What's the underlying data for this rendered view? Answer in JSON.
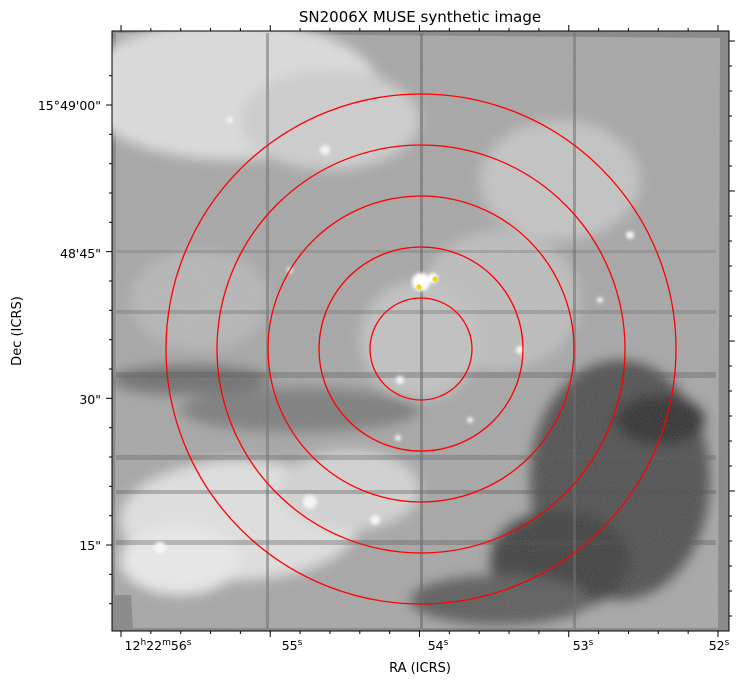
{
  "figure": {
    "title": "SN2006X MUSE synthetic image",
    "xlabel": "RA (ICRS)",
    "ylabel": "Dec (ICRS)",
    "x_ticks": [
      {
        "label": "12h22m56s",
        "value": 56
      },
      {
        "label": "55s",
        "value": 55
      },
      {
        "label": "54s",
        "value": 54
      },
      {
        "label": "53s",
        "value": 53
      },
      {
        "label": "52s",
        "value": 52
      }
    ],
    "y_ticks": [
      {
        "label": "15°49'00\"",
        "value": 60
      },
      {
        "label": "48'45\"",
        "value": 45
      },
      {
        "label": "30\"",
        "value": 30
      },
      {
        "label": "15\"",
        "value": 15
      }
    ],
    "overlays": {
      "circle_color": "#ff0000",
      "marker_color": "#f5d800",
      "circle_count": 5,
      "marker_count": 2
    },
    "colormap": "gray"
  }
}
